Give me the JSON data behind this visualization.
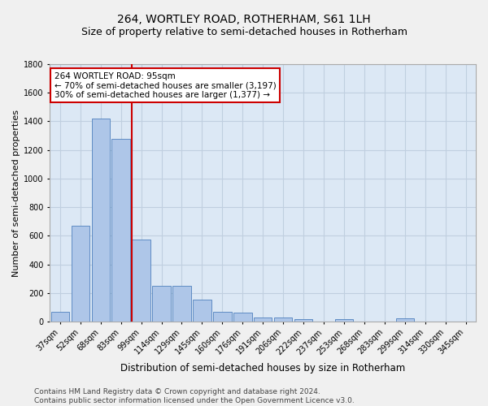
{
  "title1": "264, WORTLEY ROAD, ROTHERHAM, S61 1LH",
  "title2": "Size of property relative to semi-detached houses in Rotherham",
  "xlabel": "Distribution of semi-detached houses by size in Rotherham",
  "ylabel": "Number of semi-detached properties",
  "footer1": "Contains HM Land Registry data © Crown copyright and database right 2024.",
  "footer2": "Contains public sector information licensed under the Open Government Licence v3.0.",
  "categories": [
    "37sqm",
    "52sqm",
    "68sqm",
    "83sqm",
    "99sqm",
    "114sqm",
    "129sqm",
    "145sqm",
    "160sqm",
    "176sqm",
    "191sqm",
    "206sqm",
    "222sqm",
    "237sqm",
    "253sqm",
    "268sqm",
    "283sqm",
    "299sqm",
    "314sqm",
    "330sqm",
    "345sqm"
  ],
  "values": [
    67,
    670,
    1420,
    1280,
    575,
    250,
    250,
    155,
    68,
    65,
    30,
    28,
    20,
    0,
    20,
    0,
    0,
    22,
    0,
    0,
    0
  ],
  "bar_color": "#aec6e8",
  "bar_edge_color": "#4f81bd",
  "vline_index": 4,
  "vline_color": "#cc0000",
  "annotation_line1": "264 WORTLEY ROAD: 95sqm",
  "annotation_line2": "← 70% of semi-detached houses are smaller (3,197)",
  "annotation_line3": "30% of semi-detached houses are larger (1,377) →",
  "annotation_box_color": "#ffffff",
  "annotation_box_edge": "#cc0000",
  "ylim": [
    0,
    1800
  ],
  "yticks": [
    0,
    200,
    400,
    600,
    800,
    1000,
    1200,
    1400,
    1600,
    1800
  ],
  "grid_color": "#c0cfe0",
  "bg_color": "#dce8f5",
  "fig_bg_color": "#f0f0f0",
  "title1_fontsize": 10,
  "title2_fontsize": 9,
  "xlabel_fontsize": 8.5,
  "ylabel_fontsize": 8,
  "tick_fontsize": 7,
  "footer_fontsize": 6.5,
  "ann_fontsize": 7.5
}
